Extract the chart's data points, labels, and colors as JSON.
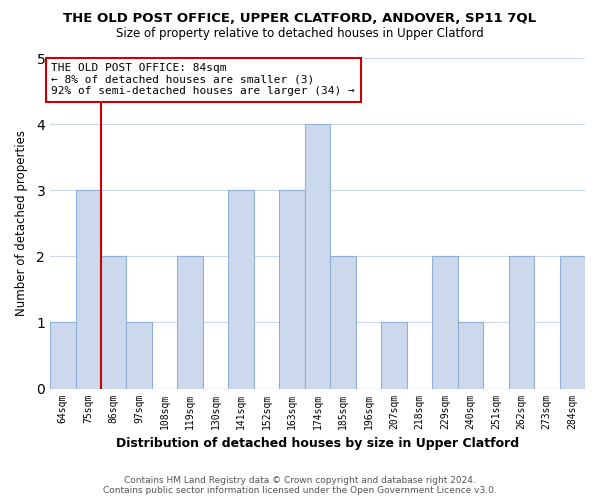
{
  "title": "THE OLD POST OFFICE, UPPER CLATFORD, ANDOVER, SP11 7QL",
  "subtitle": "Size of property relative to detached houses in Upper Clatford",
  "xlabel": "Distribution of detached houses by size in Upper Clatford",
  "ylabel": "Number of detached properties",
  "categories": [
    "64sqm",
    "75sqm",
    "86sqm",
    "97sqm",
    "108sqm",
    "119sqm",
    "130sqm",
    "141sqm",
    "152sqm",
    "163sqm",
    "174sqm",
    "185sqm",
    "196sqm",
    "207sqm",
    "218sqm",
    "229sqm",
    "240sqm",
    "251sqm",
    "262sqm",
    "273sqm",
    "284sqm"
  ],
  "values": [
    1,
    3,
    2,
    1,
    0,
    2,
    0,
    3,
    0,
    3,
    4,
    2,
    0,
    1,
    0,
    2,
    1,
    0,
    2,
    0,
    2
  ],
  "bar_color": "#ccd9ed",
  "bar_edge_color": "#8fb0d4",
  "reference_line_color": "#cc0000",
  "annotation_text_line1": "THE OLD POST OFFICE: 84sqm",
  "annotation_text_line2": "← 8% of detached houses are smaller (3)",
  "annotation_text_line3": "92% of semi-detached houses are larger (34) →",
  "annotation_box_color": "#ffffff",
  "annotation_box_edge_color": "#cc0000",
  "ylim": [
    0,
    5
  ],
  "yticks": [
    0,
    1,
    2,
    3,
    4,
    5
  ],
  "footer_line1": "Contains HM Land Registry data © Crown copyright and database right 2024.",
  "footer_line2": "Contains public sector information licensed under the Open Government Licence v3.0.",
  "background_color": "#ffffff",
  "grid_color": "#c8d8e8"
}
